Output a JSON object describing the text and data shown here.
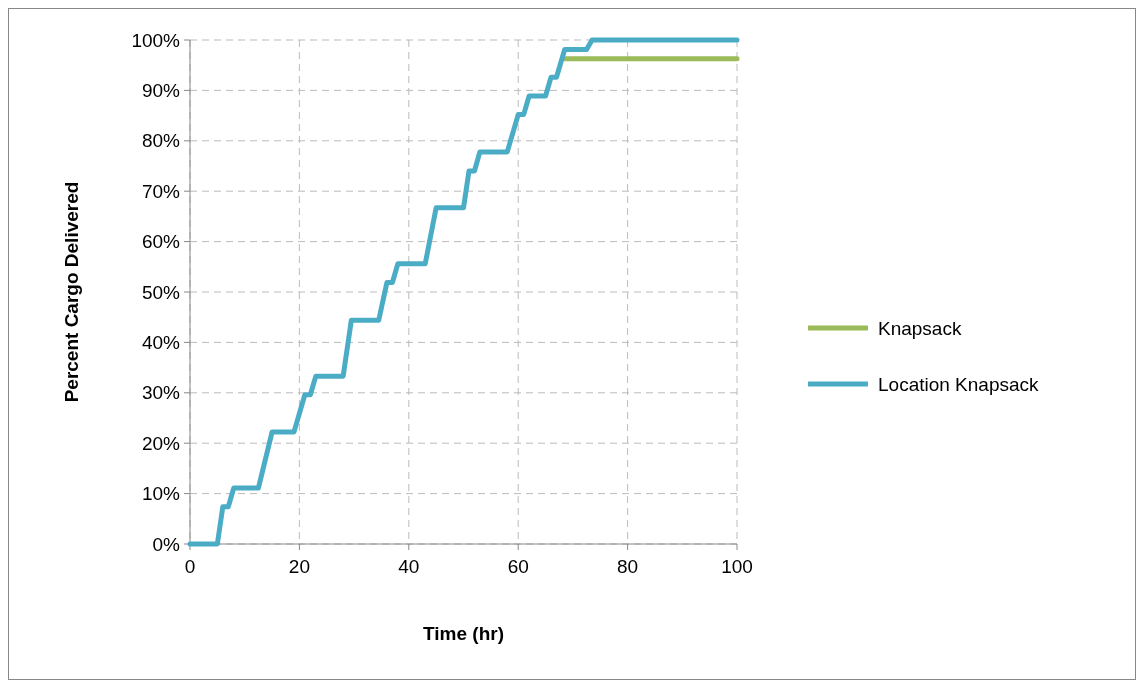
{
  "chart_data": {
    "type": "line",
    "xlabel": "Time (hr)",
    "ylabel": "Percent Cargo Delivered",
    "xlim": [
      0,
      100
    ],
    "xticks": [
      0,
      20,
      40,
      60,
      80,
      100
    ],
    "ylim": [
      0,
      100
    ],
    "yticks": [
      {
        "value": 0,
        "label": "0%"
      },
      {
        "value": 10,
        "label": "10%"
      },
      {
        "value": 20,
        "label": "20%"
      },
      {
        "value": 30,
        "label": "30%"
      },
      {
        "value": 40,
        "label": "40%"
      },
      {
        "value": 50,
        "label": "50%"
      },
      {
        "value": 60,
        "label": "60%"
      },
      {
        "value": 70,
        "label": "70%"
      },
      {
        "value": 80,
        "label": "80%"
      },
      {
        "value": 90,
        "label": "90%"
      },
      {
        "value": 100,
        "label": "100%"
      }
    ],
    "grid": true,
    "legend": "right",
    "line_style": "solid",
    "marker": "none",
    "series": [
      {
        "name": "Knapsack",
        "color": "#9bbb59",
        "x": [
          68.5,
          100
        ],
        "values": [
          96.3,
          96.3
        ]
      },
      {
        "name": "Location Knapsack",
        "color": "#4bacc6",
        "x": [
          0,
          5,
          6,
          7,
          8,
          12.5,
          15,
          19,
          21,
          22,
          23,
          28,
          29.5,
          34.5,
          36,
          37,
          38,
          43,
          45,
          50,
          51,
          52,
          53,
          58,
          60,
          61,
          62,
          65,
          66,
          67,
          68.5,
          72.5,
          73.5,
          100
        ],
        "values": [
          0,
          0,
          7.4,
          7.4,
          11.1,
          11.1,
          22.2,
          22.2,
          29.6,
          29.6,
          33.3,
          33.3,
          44.4,
          44.4,
          51.9,
          51.9,
          55.6,
          55.6,
          66.7,
          66.7,
          74,
          74,
          77.8,
          77.8,
          85.2,
          85.2,
          88.9,
          88.9,
          92.6,
          92.6,
          98.1,
          98.1,
          100,
          100
        ]
      }
    ]
  }
}
